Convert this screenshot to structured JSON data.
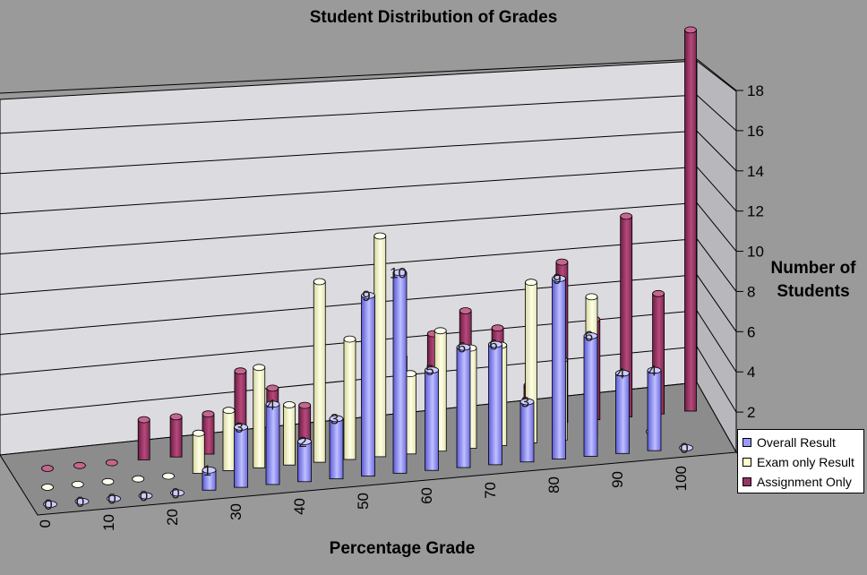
{
  "chart_data": {
    "type": "bar",
    "title": "Student Distribution of Grades",
    "xlabel": "Percentage Grade",
    "ylabel": "Number of Students",
    "categories": [
      "0",
      "5",
      "10",
      "15",
      "20",
      "25",
      "30",
      "35",
      "40",
      "45",
      "50",
      "55",
      "60",
      "65",
      "70",
      "75",
      "80",
      "85",
      "90",
      "95",
      "100"
    ],
    "x_tick_labels": [
      "0",
      "10",
      "20",
      "30",
      "40",
      "50",
      "60",
      "70",
      "80",
      "90",
      "100"
    ],
    "y_ticks": [
      "0",
      "2",
      "4",
      "6",
      "8",
      "10",
      "12",
      "14",
      "16",
      "18"
    ],
    "ylim": [
      0,
      18
    ],
    "grid": true,
    "legend_position": "bottom-right",
    "series": [
      {
        "name": "Overall Result",
        "color": "#9999ff",
        "values": [
          0,
          0,
          0,
          0,
          0,
          1,
          3,
          4,
          2,
          3,
          9,
          10,
          5,
          6,
          6,
          3,
          9,
          6,
          4,
          4,
          0
        ]
      },
      {
        "name": "Exam only Result",
        "color": "#ffffcc",
        "values": [
          0,
          0,
          0,
          0,
          0,
          2,
          3,
          5,
          3,
          9,
          6,
          11,
          4,
          6,
          5,
          5,
          8,
          4,
          7,
          0,
          0
        ]
      },
      {
        "name": "Assignment Only",
        "color": "#993366",
        "values": [
          0,
          0,
          0,
          2,
          2,
          2,
          4,
          3,
          2,
          1,
          5,
          4,
          5,
          6,
          5,
          2,
          8,
          5,
          10,
          6,
          19
        ]
      }
    ]
  }
}
